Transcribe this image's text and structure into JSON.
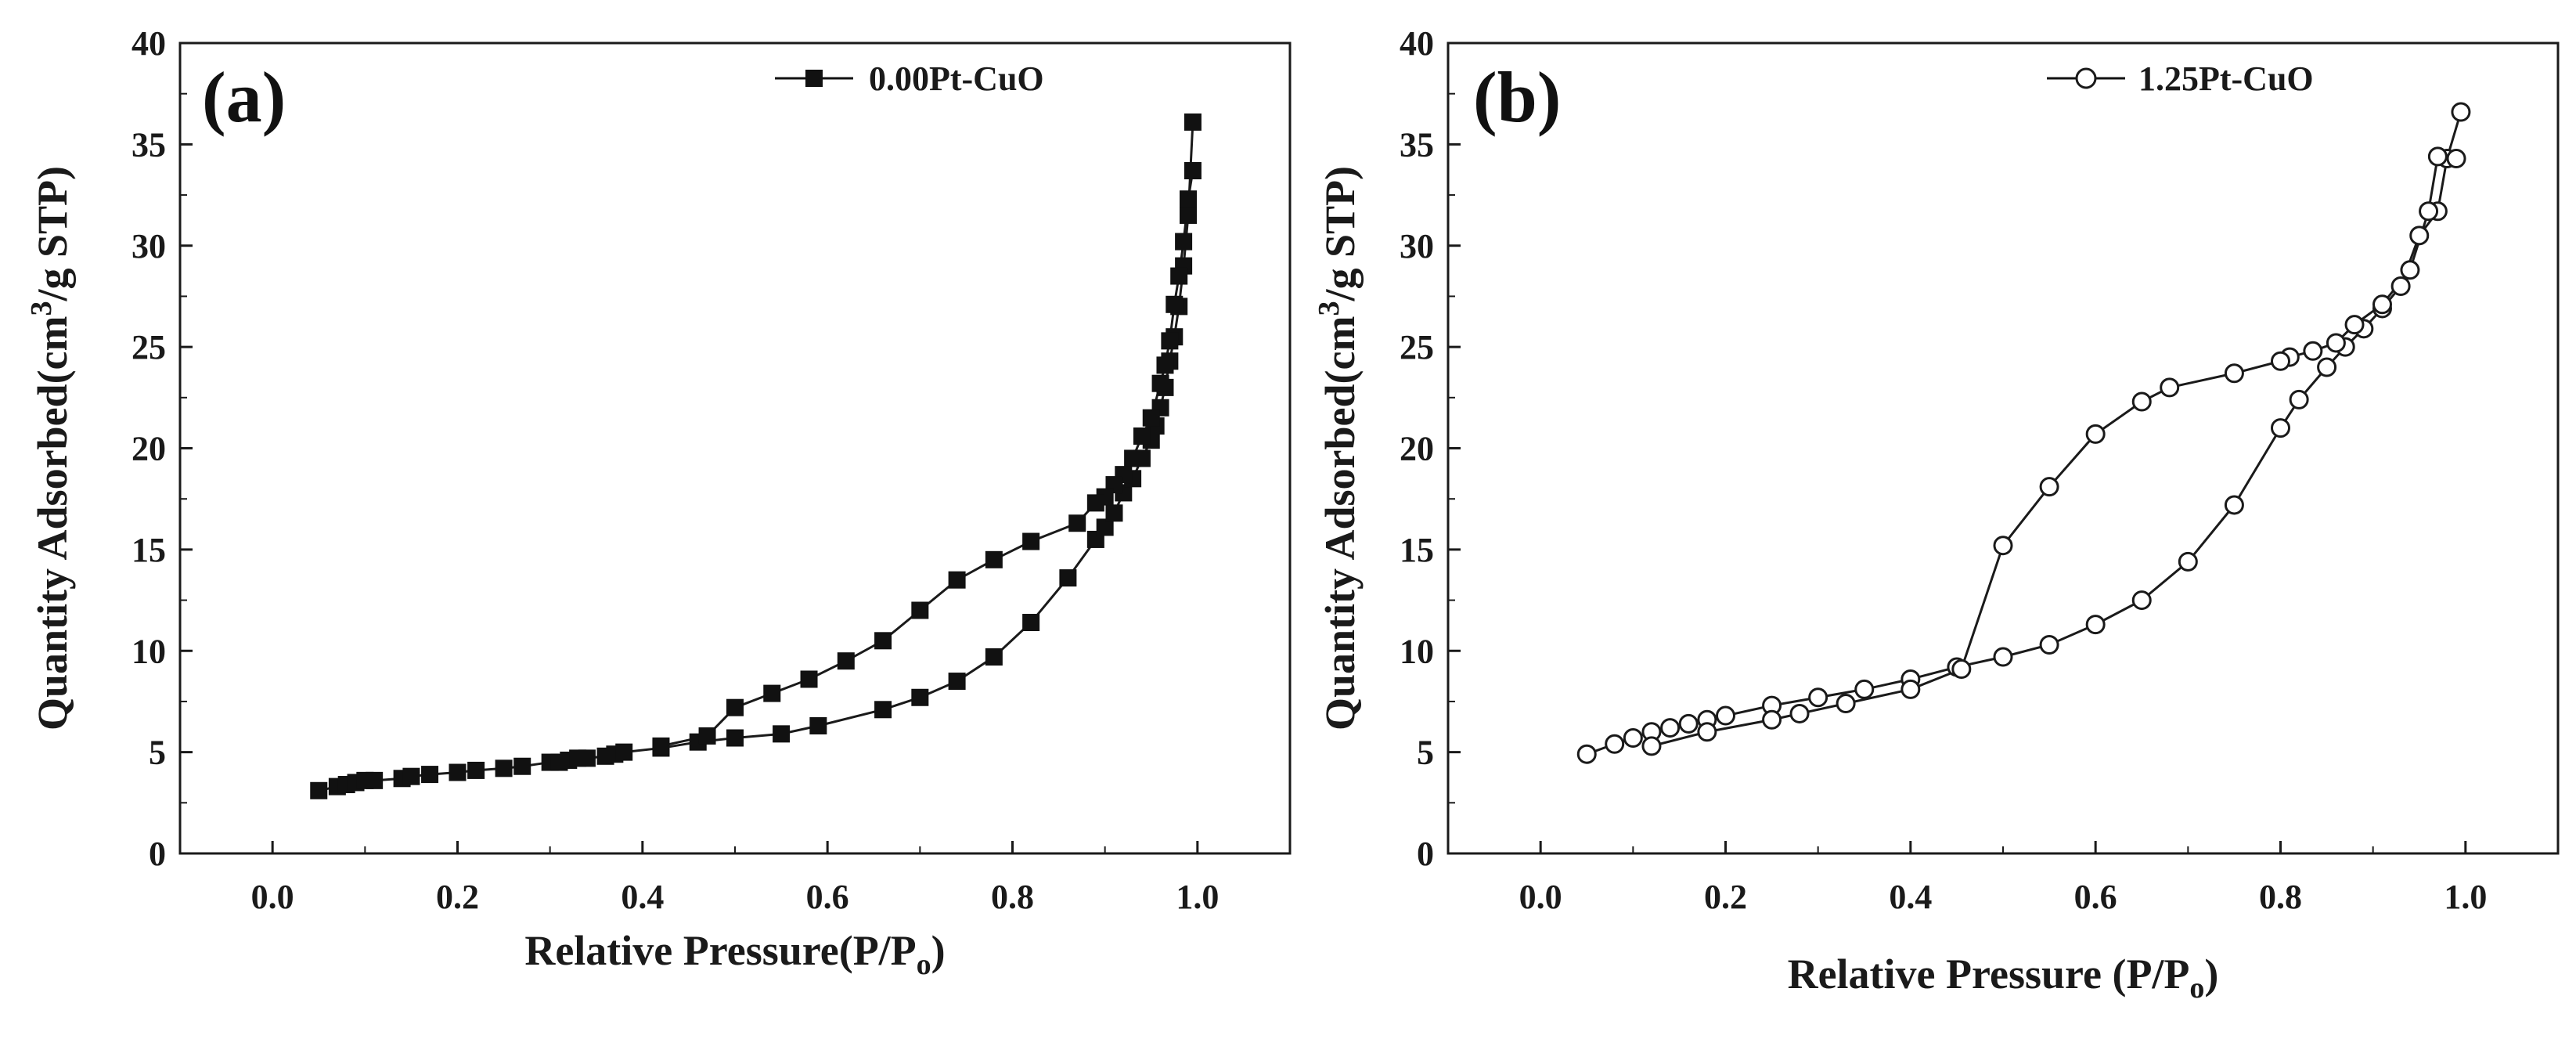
{
  "chart_data": [
    {
      "type": "scatter",
      "panel_label": "(a)",
      "xlabel": "Relative Pressure(P/P",
      "xlabel_sub": "o",
      "xlabel_end": ")",
      "ylabel": "Quantity Adsorbed(cm",
      "ylabel_sup": "3",
      "ylabel_end": "/g STP)",
      "xlim": [
        -0.1,
        1.1
      ],
      "ylim": [
        0,
        40
      ],
      "xticks": [
        0.0,
        0.2,
        0.4,
        0.6,
        0.8,
        1.0
      ],
      "xtick_labels": [
        "0.0",
        "0.2",
        "0.4",
        "0.6",
        "0.8",
        "1.0"
      ],
      "yticks": [
        0,
        5,
        10,
        15,
        20,
        25,
        30,
        35,
        40
      ],
      "ytick_labels": [
        "0",
        "5",
        "10",
        "15",
        "20",
        "25",
        "30",
        "35",
        "40"
      ],
      "legend_position": "top-right",
      "series": [
        {
          "name": "0.00Pt-CuO",
          "marker": "filled-square",
          "adsorption": {
            "x": [
              0.05,
              0.07,
              0.08,
              0.09,
              0.1,
              0.11,
              0.14,
              0.15,
              0.17,
              0.2,
              0.22,
              0.25,
              0.27,
              0.3,
              0.31,
              0.32,
              0.33,
              0.34,
              0.36,
              0.37,
              0.38,
              0.42,
              0.46,
              0.5,
              0.55,
              0.59,
              0.66,
              0.7,
              0.74,
              0.78,
              0.82,
              0.86,
              0.89,
              0.9,
              0.91,
              0.92,
              0.93,
              0.94,
              0.95,
              0.955,
              0.96,
              0.965,
              0.97,
              0.975,
              0.98,
              0.985,
              0.99,
              0.995
            ],
            "y": [
              3.1,
              3.3,
              3.4,
              3.5,
              3.6,
              3.6,
              3.7,
              3.8,
              3.9,
              4.0,
              4.1,
              4.2,
              4.3,
              4.5,
              4.5,
              4.6,
              4.7,
              4.7,
              4.8,
              4.9,
              5.0,
              5.2,
              5.5,
              5.7,
              5.9,
              6.3,
              7.1,
              7.7,
              8.5,
              9.7,
              11.4,
              13.6,
              15.5,
              16.1,
              16.8,
              17.8,
              18.5,
              19.5,
              20.4,
              21.1,
              22.0,
              23.0,
              24.3,
              25.5,
              27.0,
              29.0,
              31.5,
              36.1
            ]
          },
          "desorption": {
            "x": [
              0.995,
              0.99,
              0.985,
              0.98,
              0.975,
              0.97,
              0.965,
              0.96,
              0.95,
              0.94,
              0.93,
              0.92,
              0.91,
              0.9,
              0.89,
              0.87,
              0.82,
              0.78,
              0.74,
              0.7,
              0.66,
              0.62,
              0.58,
              0.54,
              0.5,
              0.47,
              0.42
            ],
            "y": [
              33.7,
              32.3,
              30.2,
              28.5,
              27.1,
              25.3,
              24.1,
              23.2,
              21.5,
              20.6,
              19.5,
              18.7,
              18.2,
              17.6,
              17.3,
              16.3,
              15.4,
              14.5,
              13.5,
              12.0,
              10.5,
              9.5,
              8.6,
              7.9,
              7.2,
              5.8,
              5.3
            ]
          }
        }
      ]
    },
    {
      "type": "scatter",
      "panel_label": "(b)",
      "xlabel": "Relative Pressure (P/P",
      "xlabel_sub": "o",
      "xlabel_end": ")",
      "ylabel": "Quantity Adsorbed(cm",
      "ylabel_sup": "3",
      "ylabel_end": "/g STP)",
      "xlim": [
        -0.1,
        1.1
      ],
      "ylim": [
        0,
        40
      ],
      "xticks": [
        0.0,
        0.2,
        0.4,
        0.6,
        0.8,
        1.0
      ],
      "xtick_labels": [
        "0.0",
        "0.2",
        "0.4",
        "0.6",
        "0.8",
        "1.0"
      ],
      "yticks": [
        0,
        5,
        10,
        15,
        20,
        25,
        30,
        35,
        40
      ],
      "ytick_labels": [
        "0",
        "5",
        "10",
        "15",
        "20",
        "25",
        "30",
        "35",
        "40"
      ],
      "legend_position": "top-right",
      "series": [
        {
          "name": "1.25Pt-CuO",
          "marker": "open-circle",
          "adsorption": {
            "x": [
              0.05,
              0.08,
              0.1,
              0.12,
              0.14,
              0.16,
              0.18,
              0.2,
              0.25,
              0.3,
              0.35,
              0.4,
              0.45,
              0.5,
              0.55,
              0.6,
              0.65,
              0.7,
              0.75,
              0.8,
              0.82,
              0.85,
              0.87,
              0.89,
              0.91,
              0.93,
              0.95,
              0.97,
              0.98,
              0.995
            ],
            "y": [
              4.9,
              5.4,
              5.7,
              6.0,
              6.2,
              6.4,
              6.6,
              6.8,
              7.3,
              7.7,
              8.1,
              8.6,
              9.2,
              9.7,
              10.3,
              11.3,
              12.5,
              14.4,
              17.2,
              21.0,
              22.4,
              24.0,
              25.0,
              25.9,
              26.9,
              28.0,
              30.5,
              31.7,
              34.3,
              36.6
            ]
          },
          "desorption": {
            "x": [
              0.99,
              0.97,
              0.96,
              0.94,
              0.91,
              0.88,
              0.86,
              0.835,
              0.81,
              0.8,
              0.75,
              0.68,
              0.65,
              0.6,
              0.55,
              0.5,
              0.455,
              0.4,
              0.33,
              0.28,
              0.25,
              0.18,
              0.12
            ],
            "y": [
              34.3,
              34.4,
              31.7,
              28.8,
              27.1,
              26.1,
              25.2,
              24.8,
              24.5,
              24.3,
              23.7,
              23.0,
              22.3,
              20.7,
              18.1,
              15.2,
              9.1,
              8.1,
              7.4,
              6.9,
              6.6,
              6.0,
              5.3
            ]
          }
        }
      ]
    }
  ]
}
